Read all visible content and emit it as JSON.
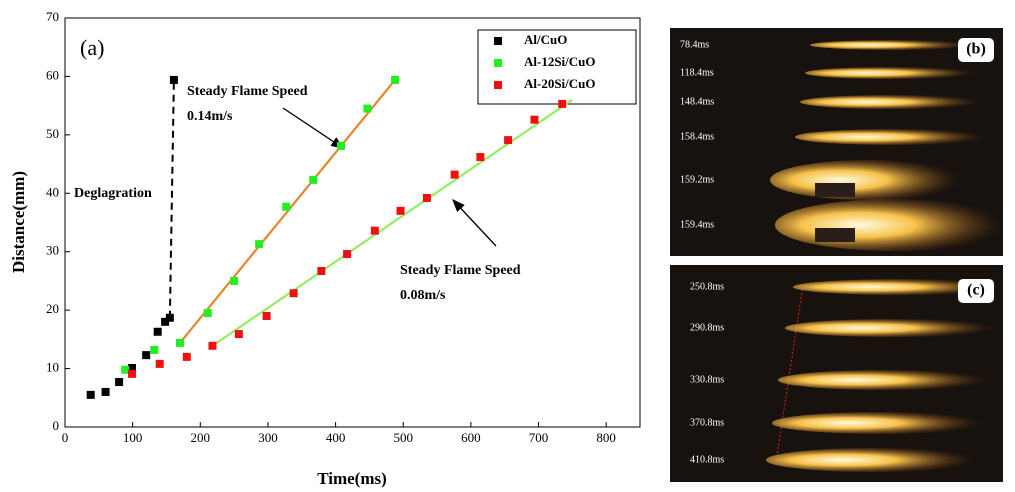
{
  "chart_data": {
    "type": "scatter",
    "panel_label": "(a)",
    "x_label": "Time(ms)",
    "y_label": "Distance(mm)",
    "xlim": [
      0,
      850
    ],
    "ylim": [
      0,
      70
    ],
    "xticks": [
      0,
      100,
      200,
      300,
      400,
      500,
      600,
      700,
      800
    ],
    "yticks": [
      0,
      10,
      20,
      30,
      40,
      50,
      60,
      70
    ],
    "series": [
      {
        "name": "Al/CuO",
        "color": "#000000",
        "x": [
          38,
          60,
          80,
          99,
          120,
          137,
          148,
          155,
          161
        ],
        "values": [
          5.5,
          6.0,
          7.7,
          10.1,
          12.3,
          16.3,
          18.0,
          18.7,
          59.4
        ]
      },
      {
        "name": "Al-12Si/CuO",
        "color": "#22ee22",
        "x": [
          89,
          132,
          170,
          211,
          250,
          287,
          327,
          367,
          408,
          447,
          488
        ],
        "values": [
          9.8,
          13.2,
          14.4,
          19.5,
          25,
          31.3,
          37.7,
          42.3,
          48.1,
          54.5,
          59.4
        ]
      },
      {
        "name": "Al-20Si/CuO",
        "color": "#ee1111",
        "x": [
          99,
          140,
          180,
          218,
          257,
          298,
          338,
          379,
          417,
          458,
          496,
          535,
          576,
          614,
          655,
          694,
          735
        ],
        "values": [
          9.1,
          10.8,
          12,
          13.9,
          15.9,
          19,
          22.9,
          26.7,
          29.6,
          33.6,
          37,
          39.2,
          43.2,
          46.2,
          49.1,
          52.6,
          55.3
        ]
      }
    ],
    "fit_lines": [
      {
        "color": "#e8842c",
        "x": [
          170,
          490
        ],
        "values": [
          14.4,
          59.7
        ]
      },
      {
        "color": "#90ee60",
        "x": [
          218,
          750
        ],
        "values": [
          13.9,
          56
        ]
      }
    ],
    "annotations": [
      "Steady Flame Speed",
      "0.14m/s",
      "Deglagration",
      "Steady Flame Speed",
      "0.08m/s"
    ]
  },
  "panels": [
    {
      "label": "(b)",
      "times": [
        "78.4ms",
        "118.4ms",
        "148.4ms",
        "158.4ms",
        "159.2ms",
        "159.4ms"
      ]
    },
    {
      "label": "(c)",
      "times": [
        "250.8ms",
        "290.8ms",
        "330.8ms",
        "370.8ms",
        "410.8ms"
      ]
    }
  ]
}
